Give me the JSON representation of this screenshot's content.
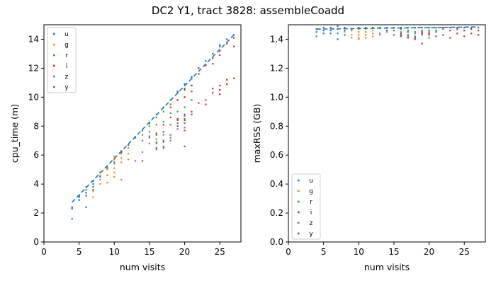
{
  "figure": {
    "title": "DC2 Y1, tract 3828: assembleCoadd"
  },
  "colors": {
    "u": "#1f77b4",
    "g": "#ff7f0e",
    "r": "#2ca02c",
    "i": "#d62728",
    "z": "#9467bd",
    "y": "#8c564b"
  },
  "chart_data": [
    {
      "type": "scatter",
      "xlabel": "num visits",
      "ylabel": "cpu_time (m)",
      "xlim": [
        0,
        28
      ],
      "ylim": [
        0,
        15
      ],
      "xticks": [
        0,
        5,
        10,
        15,
        20,
        25
      ],
      "yticks": [
        0,
        2,
        4,
        6,
        8,
        10,
        12,
        14
      ],
      "legend": {
        "position": "top-left",
        "entries": [
          "u",
          "g",
          "r",
          "i",
          "z",
          "y"
        ]
      },
      "fit_line": {
        "style": "dashed",
        "color": "#1f77b4",
        "x": [
          4,
          27
        ],
        "y": [
          2.75,
          14.3
        ]
      },
      "series": [
        {
          "name": "u",
          "points": [
            [
              4,
              2.4
            ],
            [
              4,
              2.3
            ],
            [
              4,
              1.6
            ],
            [
              5,
              3.1
            ],
            [
              5,
              3.2
            ],
            [
              5,
              2.9
            ],
            [
              6,
              3.8
            ],
            [
              6,
              3.6
            ],
            [
              6,
              3.4
            ],
            [
              6,
              3.2
            ],
            [
              6,
              2.4
            ],
            [
              7,
              4.2
            ],
            [
              7,
              4.0
            ],
            [
              7,
              3.8
            ],
            [
              7,
              3.6
            ],
            [
              8,
              4.8
            ],
            [
              8,
              4.5
            ],
            [
              9,
              5.1
            ],
            [
              10,
              5.7
            ],
            [
              10,
              5.5
            ],
            [
              11,
              6.2
            ],
            [
              12,
              6.7
            ],
            [
              13,
              7.2
            ],
            [
              14,
              7.7
            ],
            [
              15,
              8.2
            ],
            [
              16,
              8.8
            ],
            [
              17,
              9.3
            ],
            [
              18,
              9.8
            ],
            [
              19,
              10.4
            ],
            [
              20,
              10.9
            ],
            [
              21,
              11.4
            ],
            [
              22,
              12.0
            ],
            [
              23,
              12.5
            ],
            [
              24,
              13.0
            ],
            [
              25,
              13.5
            ],
            [
              26,
              14.0
            ],
            [
              27,
              14.3
            ]
          ]
        },
        {
          "name": "g",
          "points": [
            [
              7,
              3.1
            ],
            [
              7,
              3.5
            ],
            [
              8,
              4.0
            ],
            [
              8,
              4.3
            ],
            [
              8,
              4.6
            ],
            [
              9,
              4.1
            ],
            [
              9,
              4.6
            ],
            [
              9,
              5.0
            ],
            [
              9,
              5.2
            ],
            [
              10,
              4.5
            ],
            [
              10,
              4.8
            ],
            [
              10,
              5.1
            ],
            [
              10,
              5.4
            ],
            [
              10,
              5.7
            ],
            [
              10,
              5.9
            ],
            [
              11,
              4.3
            ],
            [
              11,
              5.5
            ],
            [
              11,
              5.8
            ],
            [
              11,
              6.1
            ],
            [
              11,
              6.3
            ],
            [
              12,
              5.7
            ],
            [
              12,
              6.1
            ],
            [
              12,
              6.5
            ]
          ]
        },
        {
          "name": "r",
          "points": [
            [
              14,
              7.0
            ],
            [
              15,
              7.2
            ],
            [
              15,
              7.6
            ],
            [
              15,
              8.0
            ],
            [
              16,
              6.9
            ],
            [
              16,
              7.5
            ],
            [
              16,
              8.1
            ],
            [
              16,
              8.6
            ],
            [
              17,
              7.0
            ],
            [
              17,
              7.6
            ],
            [
              17,
              8.3
            ],
            [
              17,
              9.0
            ],
            [
              18,
              7.4
            ],
            [
              18,
              8.1
            ],
            [
              18,
              8.9
            ],
            [
              18,
              9.5
            ],
            [
              19,
              8.2
            ],
            [
              19,
              9.0
            ],
            [
              19,
              9.8
            ],
            [
              19,
              10.3
            ],
            [
              20,
              8.5
            ],
            [
              20,
              9.3
            ],
            [
              20,
              10.0
            ],
            [
              20,
              10.6
            ],
            [
              21,
              8.8
            ],
            [
              21,
              9.8
            ],
            [
              21,
              10.8
            ],
            [
              21,
              11.3
            ]
          ]
        },
        {
          "name": "i",
          "points": [
            [
              16,
              7.4
            ],
            [
              17,
              8.1
            ],
            [
              18,
              8.6
            ],
            [
              18,
              9.3
            ],
            [
              19,
              8.5
            ],
            [
              19,
              9.8
            ],
            [
              20,
              8.4
            ],
            [
              20,
              8.8
            ],
            [
              20,
              10.0
            ],
            [
              20,
              10.5
            ],
            [
              21,
              9.0
            ],
            [
              21,
              10.4
            ],
            [
              21,
              10.8
            ],
            [
              22,
              9.6
            ],
            [
              22,
              11.6
            ],
            [
              22,
              12.0
            ],
            [
              23,
              9.5
            ],
            [
              23,
              9.8
            ],
            [
              23,
              12.2
            ],
            [
              24,
              10.3
            ],
            [
              24,
              10.6
            ],
            [
              24,
              12.3
            ],
            [
              24,
              12.7
            ],
            [
              25,
              10.2
            ],
            [
              25,
              10.5
            ],
            [
              25,
              10.8
            ],
            [
              25,
              12.9
            ],
            [
              25,
              13.2
            ],
            [
              25,
              13.6
            ],
            [
              26,
              10.9
            ],
            [
              26,
              11.2
            ],
            [
              26,
              13.7
            ],
            [
              27,
              11.3
            ],
            [
              27,
              13.5
            ],
            [
              27,
              14.1
            ]
          ]
        },
        {
          "name": "z",
          "points": [
            [
              13,
              5.6
            ],
            [
              14,
              6.2
            ],
            [
              14,
              7.4
            ],
            [
              15,
              6.8
            ],
            [
              15,
              7.3
            ],
            [
              16,
              6.5
            ],
            [
              16,
              6.8
            ],
            [
              16,
              7.1
            ],
            [
              17,
              6.6
            ],
            [
              17,
              6.9
            ],
            [
              17,
              7.4
            ],
            [
              18,
              7.0
            ],
            [
              18,
              7.4
            ],
            [
              19,
              7.8
            ],
            [
              19,
              8.2
            ],
            [
              20,
              7.9
            ],
            [
              20,
              8.7
            ]
          ]
        },
        {
          "name": "y",
          "points": [
            [
              14,
              5.6
            ],
            [
              16,
              6.4
            ],
            [
              17,
              6.5
            ],
            [
              17,
              7.6
            ],
            [
              18,
              7.2
            ],
            [
              19,
              8.0
            ],
            [
              19,
              8.4
            ],
            [
              20,
              6.6
            ],
            [
              20,
              7.7
            ],
            [
              20,
              8.2
            ],
            [
              21,
              8.8
            ]
          ]
        }
      ]
    },
    {
      "type": "scatter",
      "xlabel": "num visits",
      "ylabel": "maxRSS (GB)",
      "xlim": [
        0,
        28
      ],
      "ylim": [
        0,
        1.5
      ],
      "xticks": [
        0,
        5,
        10,
        15,
        20,
        25
      ],
      "yticks": [
        0.0,
        0.2,
        0.4,
        0.6,
        0.8,
        1.0,
        1.2,
        1.4
      ],
      "legend": {
        "position": "bottom-left",
        "entries": [
          "u",
          "g",
          "r",
          "i",
          "z",
          "y"
        ]
      },
      "fit_line": {
        "style": "dashed",
        "color": "#1f77b4",
        "x": [
          4,
          27
        ],
        "y": [
          1.47,
          1.485
        ]
      },
      "series": [
        {
          "name": "u",
          "points": [
            [
              4,
              1.47
            ],
            [
              4,
              1.45
            ],
            [
              4,
              1.42
            ],
            [
              5,
              1.48
            ],
            [
              5,
              1.46
            ],
            [
              5,
              1.44
            ],
            [
              6,
              1.48
            ],
            [
              6,
              1.46
            ],
            [
              6,
              1.44
            ],
            [
              7,
              1.49
            ],
            [
              7,
              1.47
            ],
            [
              7,
              1.44
            ],
            [
              7,
              1.4
            ],
            [
              8,
              1.48
            ],
            [
              8,
              1.46
            ],
            [
              8,
              1.43
            ],
            [
              9,
              1.47
            ],
            [
              10,
              1.48
            ],
            [
              11,
              1.48
            ],
            [
              12,
              1.48
            ],
            [
              13,
              1.48
            ],
            [
              14,
              1.48
            ],
            [
              15,
              1.48
            ],
            [
              16,
              1.48
            ],
            [
              17,
              1.48
            ],
            [
              18,
              1.48
            ],
            [
              19,
              1.48
            ],
            [
              20,
              1.48
            ],
            [
              21,
              1.48
            ],
            [
              22,
              1.48
            ],
            [
              23,
              1.48
            ],
            [
              24,
              1.48
            ],
            [
              25,
              1.48
            ],
            [
              26,
              1.48
            ],
            [
              27,
              1.48
            ]
          ]
        },
        {
          "name": "g",
          "points": [
            [
              8,
              1.45
            ],
            [
              9,
              1.46
            ],
            [
              9,
              1.43
            ],
            [
              9,
              1.41
            ],
            [
              10,
              1.47
            ],
            [
              10,
              1.45
            ],
            [
              10,
              1.43
            ],
            [
              10,
              1.41
            ],
            [
              10,
              1.4
            ],
            [
              11,
              1.47
            ],
            [
              11,
              1.45
            ],
            [
              11,
              1.43
            ],
            [
              11,
              1.41
            ],
            [
              12,
              1.46
            ],
            [
              12,
              1.44
            ],
            [
              12,
              1.42
            ],
            [
              13,
              1.43
            ]
          ]
        },
        {
          "name": "r",
          "points": [
            [
              15,
              1.46
            ],
            [
              16,
              1.47
            ],
            [
              16,
              1.44
            ],
            [
              17,
              1.46
            ],
            [
              17,
              1.43
            ],
            [
              18,
              1.45
            ],
            [
              18,
              1.42
            ],
            [
              19,
              1.46
            ],
            [
              19,
              1.43
            ],
            [
              20,
              1.46
            ],
            [
              20,
              1.41
            ],
            [
              21,
              1.45
            ],
            [
              22,
              1.47
            ]
          ]
        },
        {
          "name": "i",
          "points": [
            [
              16,
              1.43
            ],
            [
              17,
              1.41
            ],
            [
              18,
              1.4
            ],
            [
              19,
              1.45
            ],
            [
              19,
              1.37
            ],
            [
              20,
              1.44
            ],
            [
              21,
              1.42
            ],
            [
              22,
              1.43
            ],
            [
              22,
              1.48
            ],
            [
              23,
              1.41
            ],
            [
              23,
              1.46
            ],
            [
              24,
              1.44
            ],
            [
              24,
              1.47
            ],
            [
              25,
              1.42
            ],
            [
              25,
              1.46
            ],
            [
              26,
              1.44
            ],
            [
              26,
              1.47
            ],
            [
              27,
              1.43
            ],
            [
              27,
              1.46
            ]
          ]
        },
        {
          "name": "z",
          "points": [
            [
              13,
              1.44
            ],
            [
              14,
              1.45
            ],
            [
              15,
              1.43
            ],
            [
              16,
              1.45
            ],
            [
              17,
              1.42
            ],
            [
              18,
              1.44
            ],
            [
              19,
              1.43
            ],
            [
              20,
              1.45
            ]
          ]
        },
        {
          "name": "y",
          "points": [
            [
              14,
              1.46
            ],
            [
              16,
              1.42
            ],
            [
              17,
              1.45
            ],
            [
              18,
              1.41
            ],
            [
              19,
              1.44
            ],
            [
              20,
              1.43
            ],
            [
              21,
              1.46
            ]
          ]
        }
      ]
    }
  ]
}
